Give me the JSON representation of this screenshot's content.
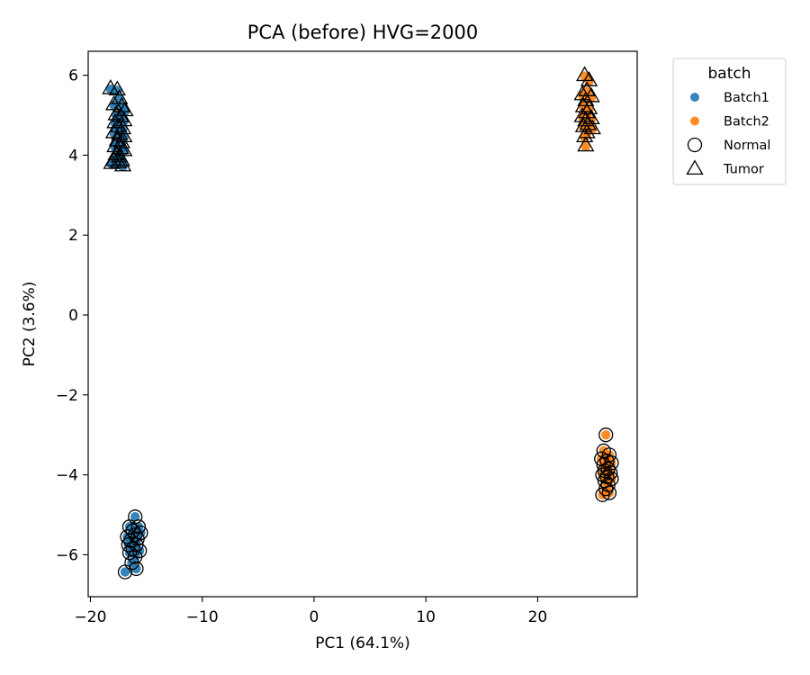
{
  "chart_data": {
    "type": "scatter",
    "title": "PCA (before) HVG=2000",
    "xlabel": "PC1 (64.1%)",
    "ylabel": "PC2 (3.6%)",
    "xlim": [
      -20.2,
      28.9
    ],
    "ylim": [
      -7.05,
      6.6
    ],
    "xticks": [
      -20,
      -10,
      0,
      10,
      20
    ],
    "yticks": [
      -6,
      -4,
      -2,
      0,
      2,
      4,
      6
    ],
    "xtick_labels": [
      "−20",
      "−10",
      "0",
      "10",
      "20"
    ],
    "ytick_labels": [
      "−6",
      "−4",
      "−2",
      "0",
      "2",
      "4",
      "6"
    ],
    "grid": false,
    "legend": {
      "title": "batch",
      "placement": "outside-upper-right",
      "entries": [
        {
          "label": "Batch1",
          "kind": "color",
          "color": "#1f77b4"
        },
        {
          "label": "Batch2",
          "kind": "color",
          "color": "#ff7f0e"
        },
        {
          "label": "Normal",
          "kind": "marker",
          "marker": "circle"
        },
        {
          "label": "Tumor",
          "kind": "marker",
          "marker": "triangle"
        }
      ]
    },
    "series": [
      {
        "batch": "Batch1",
        "condition": "Tumor",
        "color": "#1f77b4",
        "marker": "triangle",
        "points": [
          [
            -18.2,
            5.65
          ],
          [
            -17.6,
            5.62
          ],
          [
            -17.4,
            5.4
          ],
          [
            -17.9,
            5.25
          ],
          [
            -17.2,
            5.2
          ],
          [
            -16.9,
            5.1
          ],
          [
            -17.7,
            5.0
          ],
          [
            -17.3,
            4.95
          ],
          [
            -17.0,
            4.85
          ],
          [
            -17.8,
            4.8
          ],
          [
            -17.5,
            4.7
          ],
          [
            -17.1,
            4.65
          ],
          [
            -17.9,
            4.55
          ],
          [
            -17.4,
            4.5
          ],
          [
            -17.0,
            4.45
          ],
          [
            -17.6,
            4.35
          ],
          [
            -17.2,
            4.3
          ],
          [
            -17.8,
            4.2
          ],
          [
            -17.3,
            4.15
          ],
          [
            -17.0,
            4.1
          ],
          [
            -17.7,
            4.0
          ],
          [
            -17.4,
            3.95
          ],
          [
            -17.9,
            3.85
          ],
          [
            -17.2,
            3.85
          ],
          [
            -18.1,
            3.78
          ],
          [
            -17.5,
            3.8
          ],
          [
            -17.1,
            3.72
          ]
        ]
      },
      {
        "batch": "Batch1",
        "condition": "Normal",
        "color": "#1f77b4",
        "marker": "circle",
        "points": [
          [
            -16.0,
            -5.05
          ],
          [
            -16.5,
            -5.3
          ],
          [
            -15.7,
            -5.3
          ],
          [
            -16.2,
            -5.4
          ],
          [
            -15.5,
            -5.45
          ],
          [
            -16.7,
            -5.55
          ],
          [
            -16.0,
            -5.5
          ],
          [
            -15.8,
            -5.6
          ],
          [
            -16.4,
            -5.65
          ],
          [
            -16.6,
            -5.75
          ],
          [
            -15.9,
            -5.75
          ],
          [
            -16.2,
            -5.85
          ],
          [
            -15.6,
            -5.9
          ],
          [
            -16.5,
            -5.95
          ],
          [
            -16.0,
            -6.05
          ],
          [
            -16.3,
            -6.2
          ],
          [
            -15.9,
            -6.35
          ],
          [
            -16.9,
            -6.43
          ]
        ]
      },
      {
        "batch": "Batch2",
        "condition": "Tumor",
        "color": "#ff7f0e",
        "marker": "triangle",
        "points": [
          [
            24.2,
            5.98
          ],
          [
            24.6,
            5.85
          ],
          [
            24.4,
            5.6
          ],
          [
            24.0,
            5.5
          ],
          [
            24.8,
            5.45
          ],
          [
            24.3,
            5.35
          ],
          [
            24.1,
            5.2
          ],
          [
            24.6,
            5.15
          ],
          [
            24.4,
            5.05
          ],
          [
            24.0,
            4.95
          ],
          [
            24.8,
            4.9
          ],
          [
            24.3,
            4.85
          ],
          [
            24.5,
            4.75
          ],
          [
            24.1,
            4.7
          ],
          [
            24.9,
            4.65
          ],
          [
            24.4,
            4.55
          ],
          [
            24.2,
            4.45
          ],
          [
            24.3,
            4.22
          ]
        ]
      },
      {
        "batch": "Batch2",
        "condition": "Normal",
        "color": "#ff7f0e",
        "marker": "circle",
        "points": [
          [
            26.1,
            -3.0
          ],
          [
            25.9,
            -3.4
          ],
          [
            26.4,
            -3.5
          ],
          [
            25.7,
            -3.6
          ],
          [
            26.2,
            -3.65
          ],
          [
            26.6,
            -3.7
          ],
          [
            25.9,
            -3.75
          ],
          [
            26.3,
            -3.85
          ],
          [
            26.0,
            -3.9
          ],
          [
            26.5,
            -3.95
          ],
          [
            25.8,
            -4.0
          ],
          [
            26.2,
            -4.05
          ],
          [
            26.6,
            -4.1
          ],
          [
            26.0,
            -4.15
          ],
          [
            26.3,
            -4.25
          ],
          [
            26.1,
            -4.35
          ],
          [
            26.4,
            -4.45
          ],
          [
            25.8,
            -4.5
          ]
        ]
      }
    ]
  }
}
